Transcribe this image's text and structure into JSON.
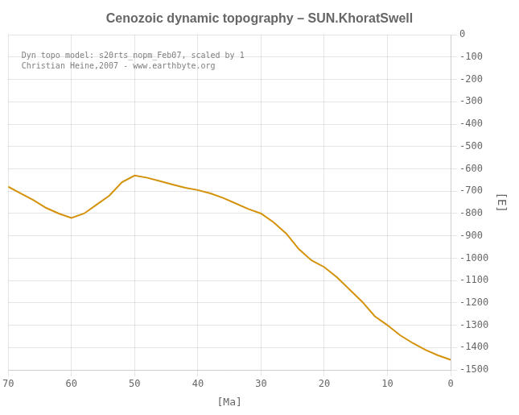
{
  "chart_data": {
    "type": "line",
    "title": "Cenozoic dynamic topography – SUN.KhoratSwell",
    "xlabel": "[Ma]",
    "ylabel": "[E]",
    "annotations": [
      "Dyn topo model: s20rts_nopm_Feb07, scaled by 1",
      "Christian Heine,2007 - www.earthbyte.org"
    ],
    "x": [
      70,
      68,
      66,
      64,
      62,
      60,
      58,
      56,
      54,
      52,
      50,
      48,
      46,
      44,
      42,
      40,
      38,
      36,
      34,
      32,
      30,
      28,
      26,
      24,
      22,
      20,
      18,
      16,
      14,
      12,
      10,
      8,
      6,
      4,
      2,
      0
    ],
    "values": [
      -680,
      -710,
      -740,
      -775,
      -800,
      -820,
      -800,
      -760,
      -720,
      -660,
      -630,
      -640,
      -655,
      -670,
      -685,
      -695,
      -710,
      -730,
      -755,
      -780,
      -800,
      -840,
      -890,
      -960,
      -1010,
      -1040,
      -1085,
      -1140,
      -1195,
      -1260,
      -1300,
      -1345,
      -1380,
      -1410,
      -1435,
      -1455
    ],
    "color": "#D4920A",
    "xlim": [
      70,
      0
    ],
    "ylim": [
      -1500,
      0
    ],
    "xticks": [
      70,
      60,
      50,
      40,
      30,
      20,
      10,
      0
    ],
    "yticks": [
      0,
      -100,
      -200,
      -300,
      -400,
      -500,
      -600,
      -700,
      -800,
      -900,
      -1000,
      -1100,
      -1200,
      -1300,
      -1400,
      -1500
    ],
    "grid": true
  }
}
